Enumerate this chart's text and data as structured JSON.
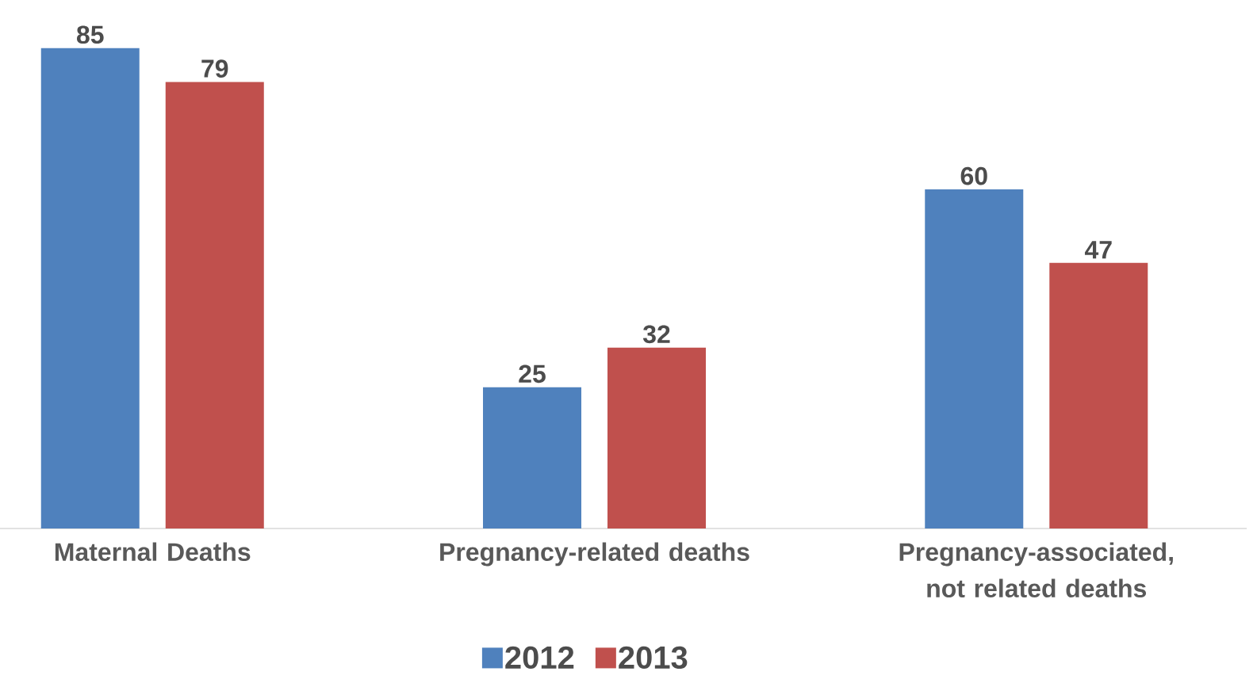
{
  "chart_data": {
    "type": "bar",
    "categories": [
      "Maternal Deaths",
      "Pregnancy-related deaths",
      "Pregnancy-associated, not related deaths"
    ],
    "series": [
      {
        "name": "2012",
        "color": "#4f81bd",
        "values": [
          85,
          25,
          60
        ]
      },
      {
        "name": "2013",
        "color": "#c0504d",
        "values": [
          79,
          32,
          47
        ]
      }
    ],
    "data_labels": true,
    "legend": "bottom"
  }
}
